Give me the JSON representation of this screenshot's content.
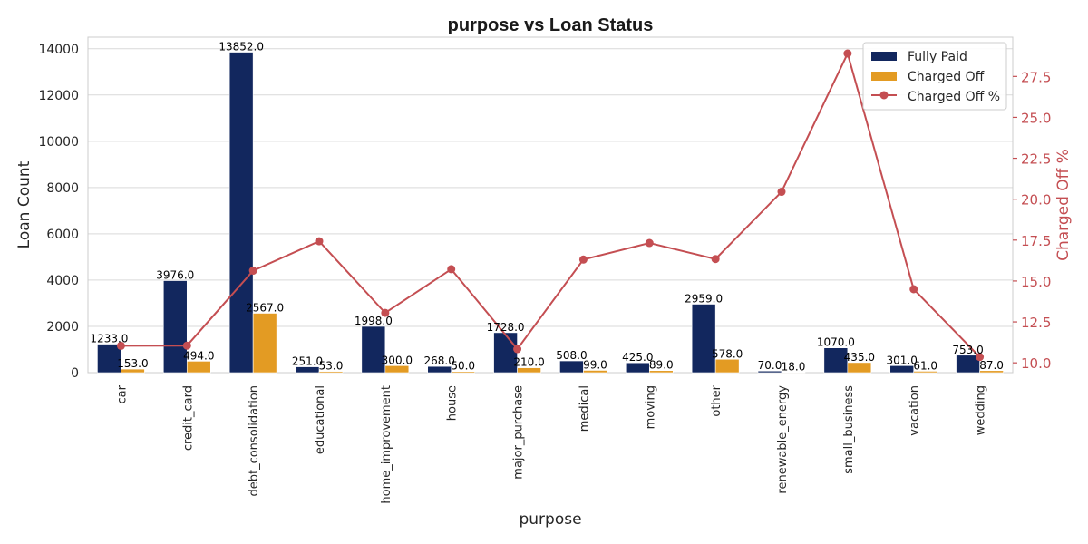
{
  "chart_data": {
    "type": "bar",
    "title": "purpose vs Loan Status",
    "xlabel": "purpose",
    "ylabel": "Loan Count",
    "y2label": "Charged Off %",
    "categories": [
      "car",
      "credit_card",
      "debt_consolidation",
      "educational",
      "home_improvement",
      "house",
      "major_purchase",
      "medical",
      "moving",
      "other",
      "renewable_energy",
      "small_business",
      "vacation",
      "wedding"
    ],
    "series": [
      {
        "name": "Fully Paid",
        "type": "bar",
        "color": "#12275e",
        "values": [
          1233,
          3976,
          13852,
          251,
          1998,
          268,
          1728,
          508,
          425,
          2959,
          70,
          1070,
          301,
          753
        ],
        "labels": [
          "1233.0",
          "3976.0",
          "13852.0",
          "251.0",
          "1998.0",
          "268.0",
          "1728.0",
          "508.0",
          "425.0",
          "2959.0",
          "70.0",
          "1070.0",
          "301.0",
          "753.0"
        ]
      },
      {
        "name": "Charged Off",
        "type": "bar",
        "color": "#e39b23",
        "values": [
          153,
          494,
          2567,
          53,
          300,
          50,
          210,
          99,
          89,
          578,
          18,
          435,
          61,
          87
        ],
        "labels": [
          "153.0",
          "494.0",
          "2567.0",
          "53.0",
          "300.0",
          "50.0",
          "210.0",
          "99.0",
          "89.0",
          "578.0",
          "18.0",
          "435.0",
          "61.0",
          "87.0"
        ]
      },
      {
        "name": "Charged Off %",
        "type": "line",
        "axis": "right",
        "color": "#c44e52",
        "values": [
          11.04,
          11.05,
          15.63,
          17.43,
          13.05,
          15.72,
          10.84,
          16.31,
          17.32,
          16.34,
          20.45,
          28.9,
          14.5,
          10.36
        ]
      }
    ],
    "ylim": [
      0,
      14500
    ],
    "yticks": [
      "0",
      "2000",
      "4000",
      "6000",
      "8000",
      "10000",
      "12000",
      "14000"
    ],
    "y2lim": [
      9.4,
      29.9
    ],
    "y2ticks": [
      "10.0",
      "12.5",
      "15.0",
      "17.5",
      "20.0",
      "22.5",
      "25.0",
      "27.5"
    ],
    "grid": true,
    "legend_position": "top-right"
  }
}
